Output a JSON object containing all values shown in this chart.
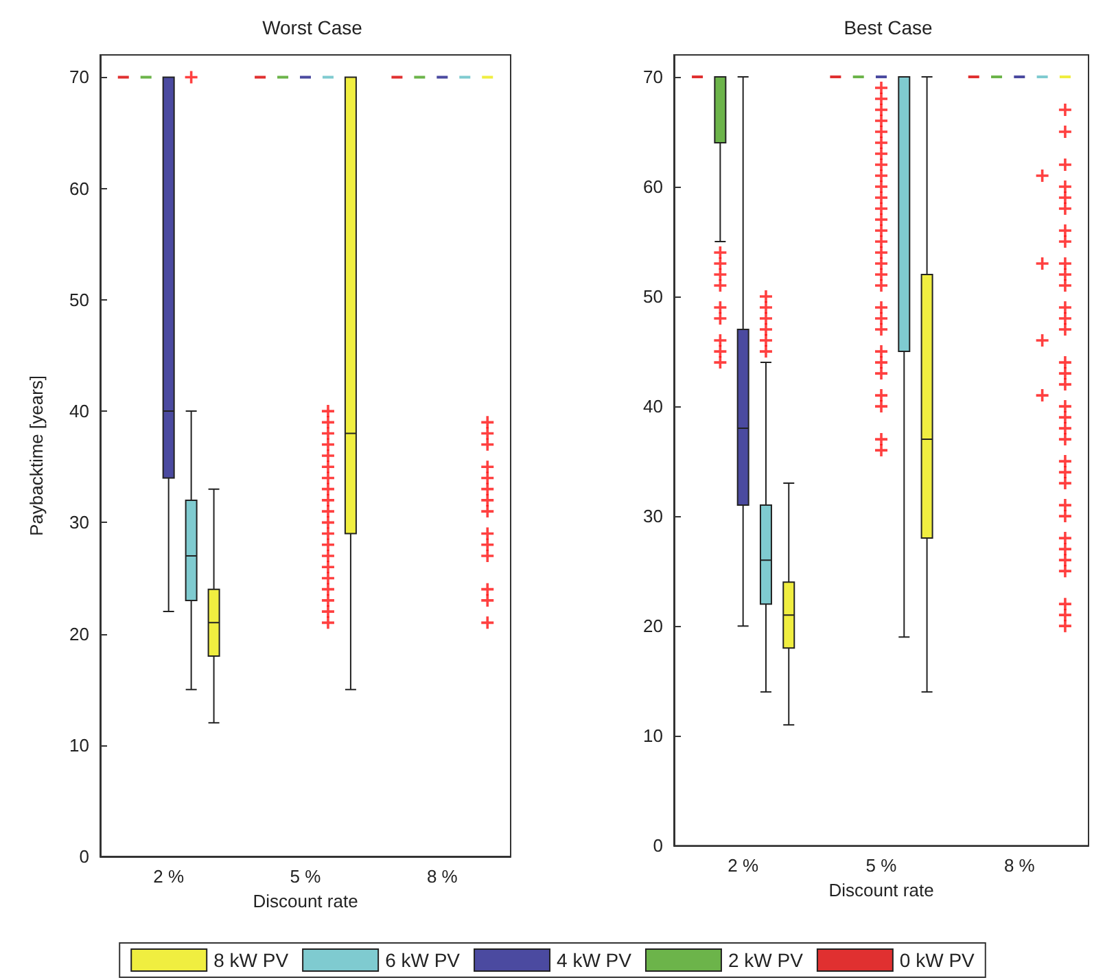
{
  "chart_data": [
    {
      "type": "box",
      "title": "Worst Case",
      "xlabel": "Discount rate",
      "ylabel": "Paybacktime [years]",
      "categories": [
        "2 %",
        "5 %",
        "8 %"
      ],
      "ylim": [
        0,
        72
      ],
      "yticks": [
        0,
        10,
        20,
        30,
        40,
        50,
        60,
        70
      ],
      "grid": false,
      "legend": "bottom",
      "series": [
        {
          "name": "8 kW PV",
          "color": "#f0ee40",
          "boxes": [
            {
              "low": 12,
              "q1": 18,
              "median": 21,
              "q3": 24,
              "high": 33
            },
            {
              "low": 15,
              "q1": 29,
              "median": 38,
              "q3": 70,
              "high": 70
            },
            {
              "low": 70,
              "q1": 70,
              "median": 70,
              "q3": 70,
              "high": 70,
              "outliers": [
                21,
                23,
                24,
                27,
                28,
                29,
                31,
                32,
                33,
                34,
                35,
                37,
                38,
                39
              ]
            }
          ]
        },
        {
          "name": "6 kW PV",
          "color": "#7fcbd0",
          "boxes": [
            {
              "low": 15,
              "q1": 23,
              "median": 27,
              "q3": 32,
              "high": 40,
              "outliers": [
                70
              ]
            },
            {
              "low": 70,
              "q1": 70,
              "median": 70,
              "q3": 70,
              "high": 70,
              "outliers": [
                21,
                22,
                23,
                24,
                25,
                26,
                27,
                28,
                29,
                30,
                31,
                32,
                33,
                34,
                35,
                36,
                37,
                38,
                39,
                40
              ]
            },
            {
              "low": 70,
              "q1": 70,
              "median": 70,
              "q3": 70,
              "high": 70
            }
          ]
        },
        {
          "name": "4 kW PV",
          "color": "#4b4aa0",
          "boxes": [
            {
              "low": 22,
              "q1": 34,
              "median": 40,
              "q3": 70,
              "high": 70
            },
            {
              "low": 70,
              "q1": 70,
              "median": 70,
              "q3": 70,
              "high": 70
            },
            {
              "low": 70,
              "q1": 70,
              "median": 70,
              "q3": 70,
              "high": 70
            }
          ]
        },
        {
          "name": "2 kW PV",
          "color": "#6cb44a",
          "boxes": [
            {
              "low": 70,
              "q1": 70,
              "median": 70,
              "q3": 70,
              "high": 70
            },
            {
              "low": 70,
              "q1": 70,
              "median": 70,
              "q3": 70,
              "high": 70
            },
            {
              "low": 70,
              "q1": 70,
              "median": 70,
              "q3": 70,
              "high": 70
            }
          ]
        },
        {
          "name": "0 kW PV",
          "color": "#e03030",
          "boxes": [
            {
              "low": 70,
              "q1": 70,
              "median": 70,
              "q3": 70,
              "high": 70
            },
            {
              "low": 70,
              "q1": 70,
              "median": 70,
              "q3": 70,
              "high": 70
            },
            {
              "low": 70,
              "q1": 70,
              "median": 70,
              "q3": 70,
              "high": 70
            }
          ]
        }
      ]
    },
    {
      "type": "box",
      "title": "Best Case",
      "xlabel": "Discount rate",
      "categories": [
        "2 %",
        "5 %",
        "8 %"
      ],
      "ylim": [
        0,
        72
      ],
      "yticks": [
        0,
        10,
        20,
        30,
        40,
        50,
        60,
        70
      ],
      "grid": false,
      "series": [
        {
          "color": "#f0ee40",
          "boxes": [
            {
              "low": 11,
              "q1": 18,
              "median": 21,
              "q3": 24,
              "high": 33
            },
            {
              "low": 14,
              "q1": 28,
              "median": 37,
              "q3": 52,
              "high": 70
            },
            {
              "low": 70,
              "q1": 70,
              "median": 70,
              "q3": 70,
              "high": 70,
              "outliers": [
                20,
                21,
                22,
                25,
                26,
                27,
                28,
                30,
                31,
                33,
                34,
                35,
                37,
                38,
                39,
                40,
                42,
                43,
                44,
                47,
                48,
                49,
                51,
                52,
                53,
                55,
                56,
                58,
                59,
                60,
                62,
                65,
                67
              ]
            }
          ]
        },
        {
          "color": "#7fcbd0",
          "boxes": [
            {
              "low": 14,
              "q1": 22,
              "median": 26,
              "q3": 31,
              "high": 44,
              "outliers": [
                45,
                46,
                47,
                48,
                49,
                50
              ]
            },
            {
              "low": 19,
              "q1": 45,
              "median": 70,
              "q3": 70,
              "high": 70
            },
            {
              "low": 70,
              "q1": 70,
              "median": 70,
              "q3": 70,
              "high": 70,
              "outliers": [
                41,
                46,
                53,
                61
              ]
            }
          ]
        },
        {
          "color": "#4b4aa0",
          "boxes": [
            {
              "low": 20,
              "q1": 31,
              "median": 38,
              "q3": 47,
              "high": 70
            },
            {
              "low": 70,
              "q1": 70,
              "median": 70,
              "q3": 70,
              "high": 70,
              "outliers": [
                36,
                37,
                40,
                41,
                43,
                44,
                45,
                47,
                48,
                49,
                51,
                52,
                53,
                54,
                55,
                56,
                57,
                58,
                59,
                60,
                61,
                62,
                63,
                64,
                65,
                66,
                67,
                68,
                69
              ]
            },
            {
              "low": 70,
              "q1": 70,
              "median": 70,
              "q3": 70,
              "high": 70
            }
          ]
        },
        {
          "color": "#6cb44a",
          "boxes": [
            {
              "low": 55,
              "q1": 64,
              "median": 70,
              "q3": 70,
              "high": 70,
              "outliers": [
                44,
                45,
                46,
                48,
                49,
                51,
                52,
                53,
                54
              ]
            },
            {
              "low": 70,
              "q1": 70,
              "median": 70,
              "q3": 70,
              "high": 70
            },
            {
              "low": 70,
              "q1": 70,
              "median": 70,
              "q3": 70,
              "high": 70
            }
          ]
        },
        {
          "color": "#e03030",
          "boxes": [
            {
              "low": 70,
              "q1": 70,
              "median": 70,
              "q3": 70,
              "high": 70
            },
            {
              "low": 70,
              "q1": 70,
              "median": 70,
              "q3": 70,
              "high": 70
            },
            {
              "low": 70,
              "q1": 70,
              "median": 70,
              "q3": 70,
              "high": 70
            }
          ]
        }
      ]
    }
  ]
}
